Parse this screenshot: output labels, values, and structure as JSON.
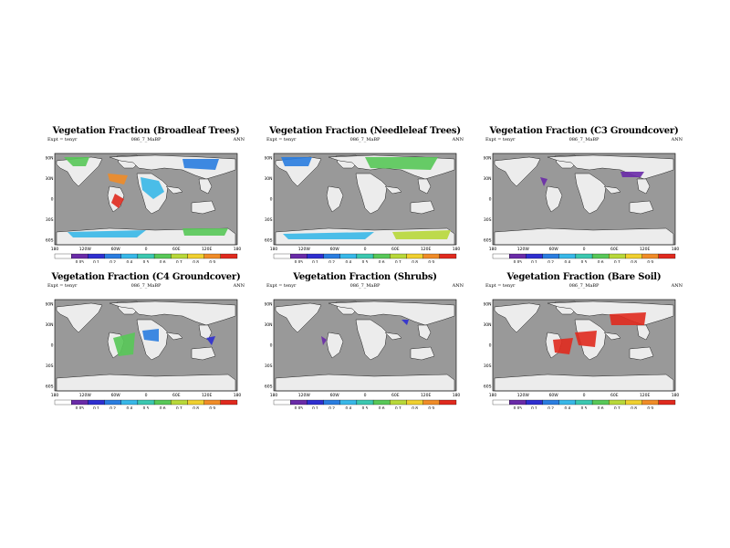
{
  "figure": {
    "experiment_label": "Expt = tenyr",
    "run_label": "086_7_MaBP",
    "period_label": "ANN"
  },
  "axes": {
    "lat_ticks": [
      "60N",
      "30N",
      "0",
      "30S",
      "60S"
    ],
    "lon_ticks": [
      "180",
      "120W",
      "60W",
      "0",
      "60E",
      "120E",
      "180"
    ]
  },
  "colorbar": {
    "tick_labels": [
      "0.05",
      "0.1",
      "0.2",
      "0.4",
      "0.5",
      "0.6",
      "0.7",
      "0.8",
      "0.9"
    ],
    "colors": [
      "#ffffff",
      "#6a2ba8",
      "#2f2fd0",
      "#2a7de0",
      "#38b8e8",
      "#3cc8b0",
      "#58c858",
      "#b8d83a",
      "#f0d030",
      "#f08c28",
      "#e02a1e"
    ]
  },
  "colors": {
    "ocean": "#999999",
    "land_bare": "#ececec",
    "outline": "#222222"
  },
  "chart_data": [
    {
      "type": "heatmap",
      "title": "Vegetation Fraction (Broadleaf Trees)",
      "variable": "broadleaf",
      "subtitle": "086_7_MaBP",
      "period": "ANN",
      "ylim": [
        -90,
        90
      ],
      "xlim": [
        -180,
        180
      ],
      "colorbar_range": [
        0.05,
        0.9
      ]
    },
    {
      "type": "heatmap",
      "title": "Vegetation Fraction (Needleleaf Trees)",
      "variable": "needleleaf",
      "subtitle": "086_7_MaBP",
      "period": "ANN",
      "ylim": [
        -90,
        90
      ],
      "xlim": [
        -180,
        180
      ],
      "colorbar_range": [
        0.05,
        0.9
      ]
    },
    {
      "type": "heatmap",
      "title": "Vegetation Fraction (C3 Groundcover)",
      "variable": "c3",
      "subtitle": "086_7_MaBP",
      "period": "ANN",
      "ylim": [
        -90,
        90
      ],
      "xlim": [
        -180,
        180
      ],
      "colorbar_range": [
        0.05,
        0.9
      ]
    },
    {
      "type": "heatmap",
      "title": "Vegetation Fraction (C4 Groundcover)",
      "variable": "c4",
      "subtitle": "086_7_MaBP",
      "period": "ANN",
      "ylim": [
        -90,
        90
      ],
      "xlim": [
        -180,
        180
      ],
      "colorbar_range": [
        0.05,
        0.9
      ]
    },
    {
      "type": "heatmap",
      "title": "Vegetation Fraction (Shrubs)",
      "variable": "shrubs",
      "subtitle": "086_7_MaBP",
      "period": "ANN",
      "ylim": [
        -90,
        90
      ],
      "xlim": [
        -180,
        180
      ],
      "colorbar_range": [
        0.05,
        0.9
      ]
    },
    {
      "type": "heatmap",
      "title": "Vegetation Fraction (Bare Soil)",
      "variable": "bare",
      "subtitle": "086_7_MaBP",
      "period": "ANN",
      "ylim": [
        -90,
        90
      ],
      "xlim": [
        -180,
        180
      ],
      "colorbar_range": [
        0.05,
        0.9
      ]
    }
  ]
}
